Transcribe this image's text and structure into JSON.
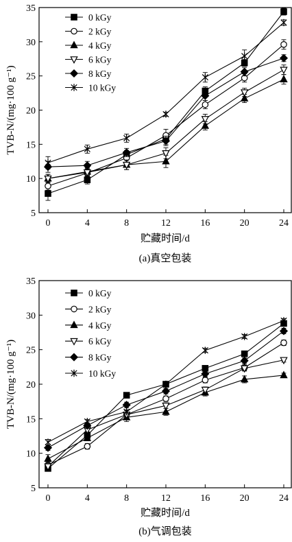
{
  "chart_data": [
    {
      "type": "line",
      "caption": "(a)真空包装",
      "xlabel": "贮藏时间/d",
      "ylabel": "TVB-N/(mg·100 g⁻¹)",
      "x": [
        0,
        4,
        8,
        12,
        16,
        20,
        24
      ],
      "xticks": [
        "0",
        "4",
        "8",
        "12",
        "16",
        "20",
        "24"
      ],
      "ylim": [
        5,
        35
      ],
      "yticks": [
        "5",
        "10",
        "15",
        "20",
        "25",
        "30",
        "35"
      ],
      "legend_position": "top-left",
      "grid": false,
      "series": [
        {
          "name": "0 kGy",
          "marker": "square",
          "values": [
            7.8,
            9.8,
            13.5,
            15.8,
            22.8,
            26.9,
            34.4
          ],
          "errors": [
            1.0,
            0.6,
            0.6,
            0.8,
            0.6,
            0.5,
            0.5
          ]
        },
        {
          "name": "2 kGy",
          "marker": "circle-open",
          "values": [
            8.9,
            10.8,
            13.0,
            16.3,
            20.8,
            24.7,
            29.6
          ],
          "errors": [
            0.6,
            0.6,
            0.6,
            0.9,
            0.6,
            0.6,
            0.7
          ]
        },
        {
          "name": "4 kGy",
          "marker": "triangle",
          "values": [
            10.0,
            11.0,
            12.0,
            12.5,
            17.7,
            21.7,
            24.5
          ],
          "errors": [
            0.6,
            0.6,
            0.7,
            0.9,
            0.6,
            0.6,
            0.7
          ]
        },
        {
          "name": "6 kGy",
          "marker": "triangle-down-open",
          "values": [
            10.0,
            10.9,
            12.0,
            13.7,
            18.7,
            22.6,
            25.9
          ],
          "errors": [
            0.6,
            0.6,
            0.7,
            0.8,
            0.7,
            0.6,
            0.7
          ]
        },
        {
          "name": "8 kGy",
          "marker": "diamond",
          "values": [
            11.7,
            11.9,
            13.8,
            15.5,
            22.1,
            25.6,
            27.6
          ],
          "errors": [
            0.8,
            0.6,
            0.6,
            0.7,
            0.7,
            0.6,
            0.5
          ]
        },
        {
          "name": "10 kGy",
          "marker": "star",
          "values": [
            12.3,
            14.3,
            15.9,
            19.4,
            24.8,
            27.9,
            32.8
          ],
          "errors": [
            0.9,
            0.6,
            0.6,
            0.3,
            0.7,
            0.9,
            0.4
          ]
        }
      ]
    },
    {
      "type": "line",
      "caption": "(b)气调包装",
      "xlabel": "贮藏时间/d",
      "ylabel": "TVB-N/(mg·100 g⁻¹)",
      "x": [
        0,
        4,
        8,
        12,
        16,
        20,
        24
      ],
      "xticks": [
        "0",
        "4",
        "8",
        "12",
        "16",
        "20",
        "24"
      ],
      "ylim": [
        5,
        35
      ],
      "yticks": [
        "5",
        "10",
        "15",
        "20",
        "25",
        "30",
        "35"
      ],
      "legend_position": "top-left",
      "grid": false,
      "series": [
        {
          "name": "0 kGy",
          "marker": "square",
          "values": [
            7.8,
            12.6,
            18.4,
            20.0,
            22.3,
            24.4,
            28.8
          ],
          "errors": [
            0.4,
            0.5,
            0.3,
            0.4,
            0.3,
            0.3,
            0.4
          ]
        },
        {
          "name": "2 kGy",
          "marker": "circle-open",
          "values": [
            8.3,
            11.0,
            15.6,
            17.9,
            20.6,
            22.4,
            26.0
          ],
          "errors": [
            0.4,
            0.4,
            0.6,
            0.4,
            0.4,
            0.4,
            0.4
          ]
        },
        {
          "name": "4 kGy",
          "marker": "triangle",
          "values": [
            9.2,
            12.2,
            15.2,
            16.0,
            18.8,
            20.7,
            21.3
          ],
          "errors": [
            0.6,
            0.4,
            0.6,
            0.5,
            0.5,
            0.5,
            0.3
          ]
        },
        {
          "name": "6 kGy",
          "marker": "triangle-down-open",
          "values": [
            8.1,
            13.4,
            15.6,
            16.9,
            19.2,
            22.3,
            23.5
          ],
          "errors": [
            0.4,
            0.4,
            0.6,
            0.4,
            0.4,
            0.4,
            0.3
          ]
        },
        {
          "name": "8 kGy",
          "marker": "diamond",
          "values": [
            10.8,
            14.0,
            17.0,
            19.0,
            21.5,
            23.4,
            27.7
          ],
          "errors": [
            0.4,
            0.4,
            0.4,
            0.4,
            0.4,
            0.4,
            0.4
          ]
        },
        {
          "name": "10 kGy",
          "marker": "star",
          "values": [
            11.6,
            14.6,
            16.0,
            20.0,
            24.9,
            26.9,
            29.2
          ],
          "errors": [
            0.4,
            0.3,
            0.3,
            0.3,
            0.3,
            0.3,
            0.3
          ]
        }
      ]
    }
  ]
}
